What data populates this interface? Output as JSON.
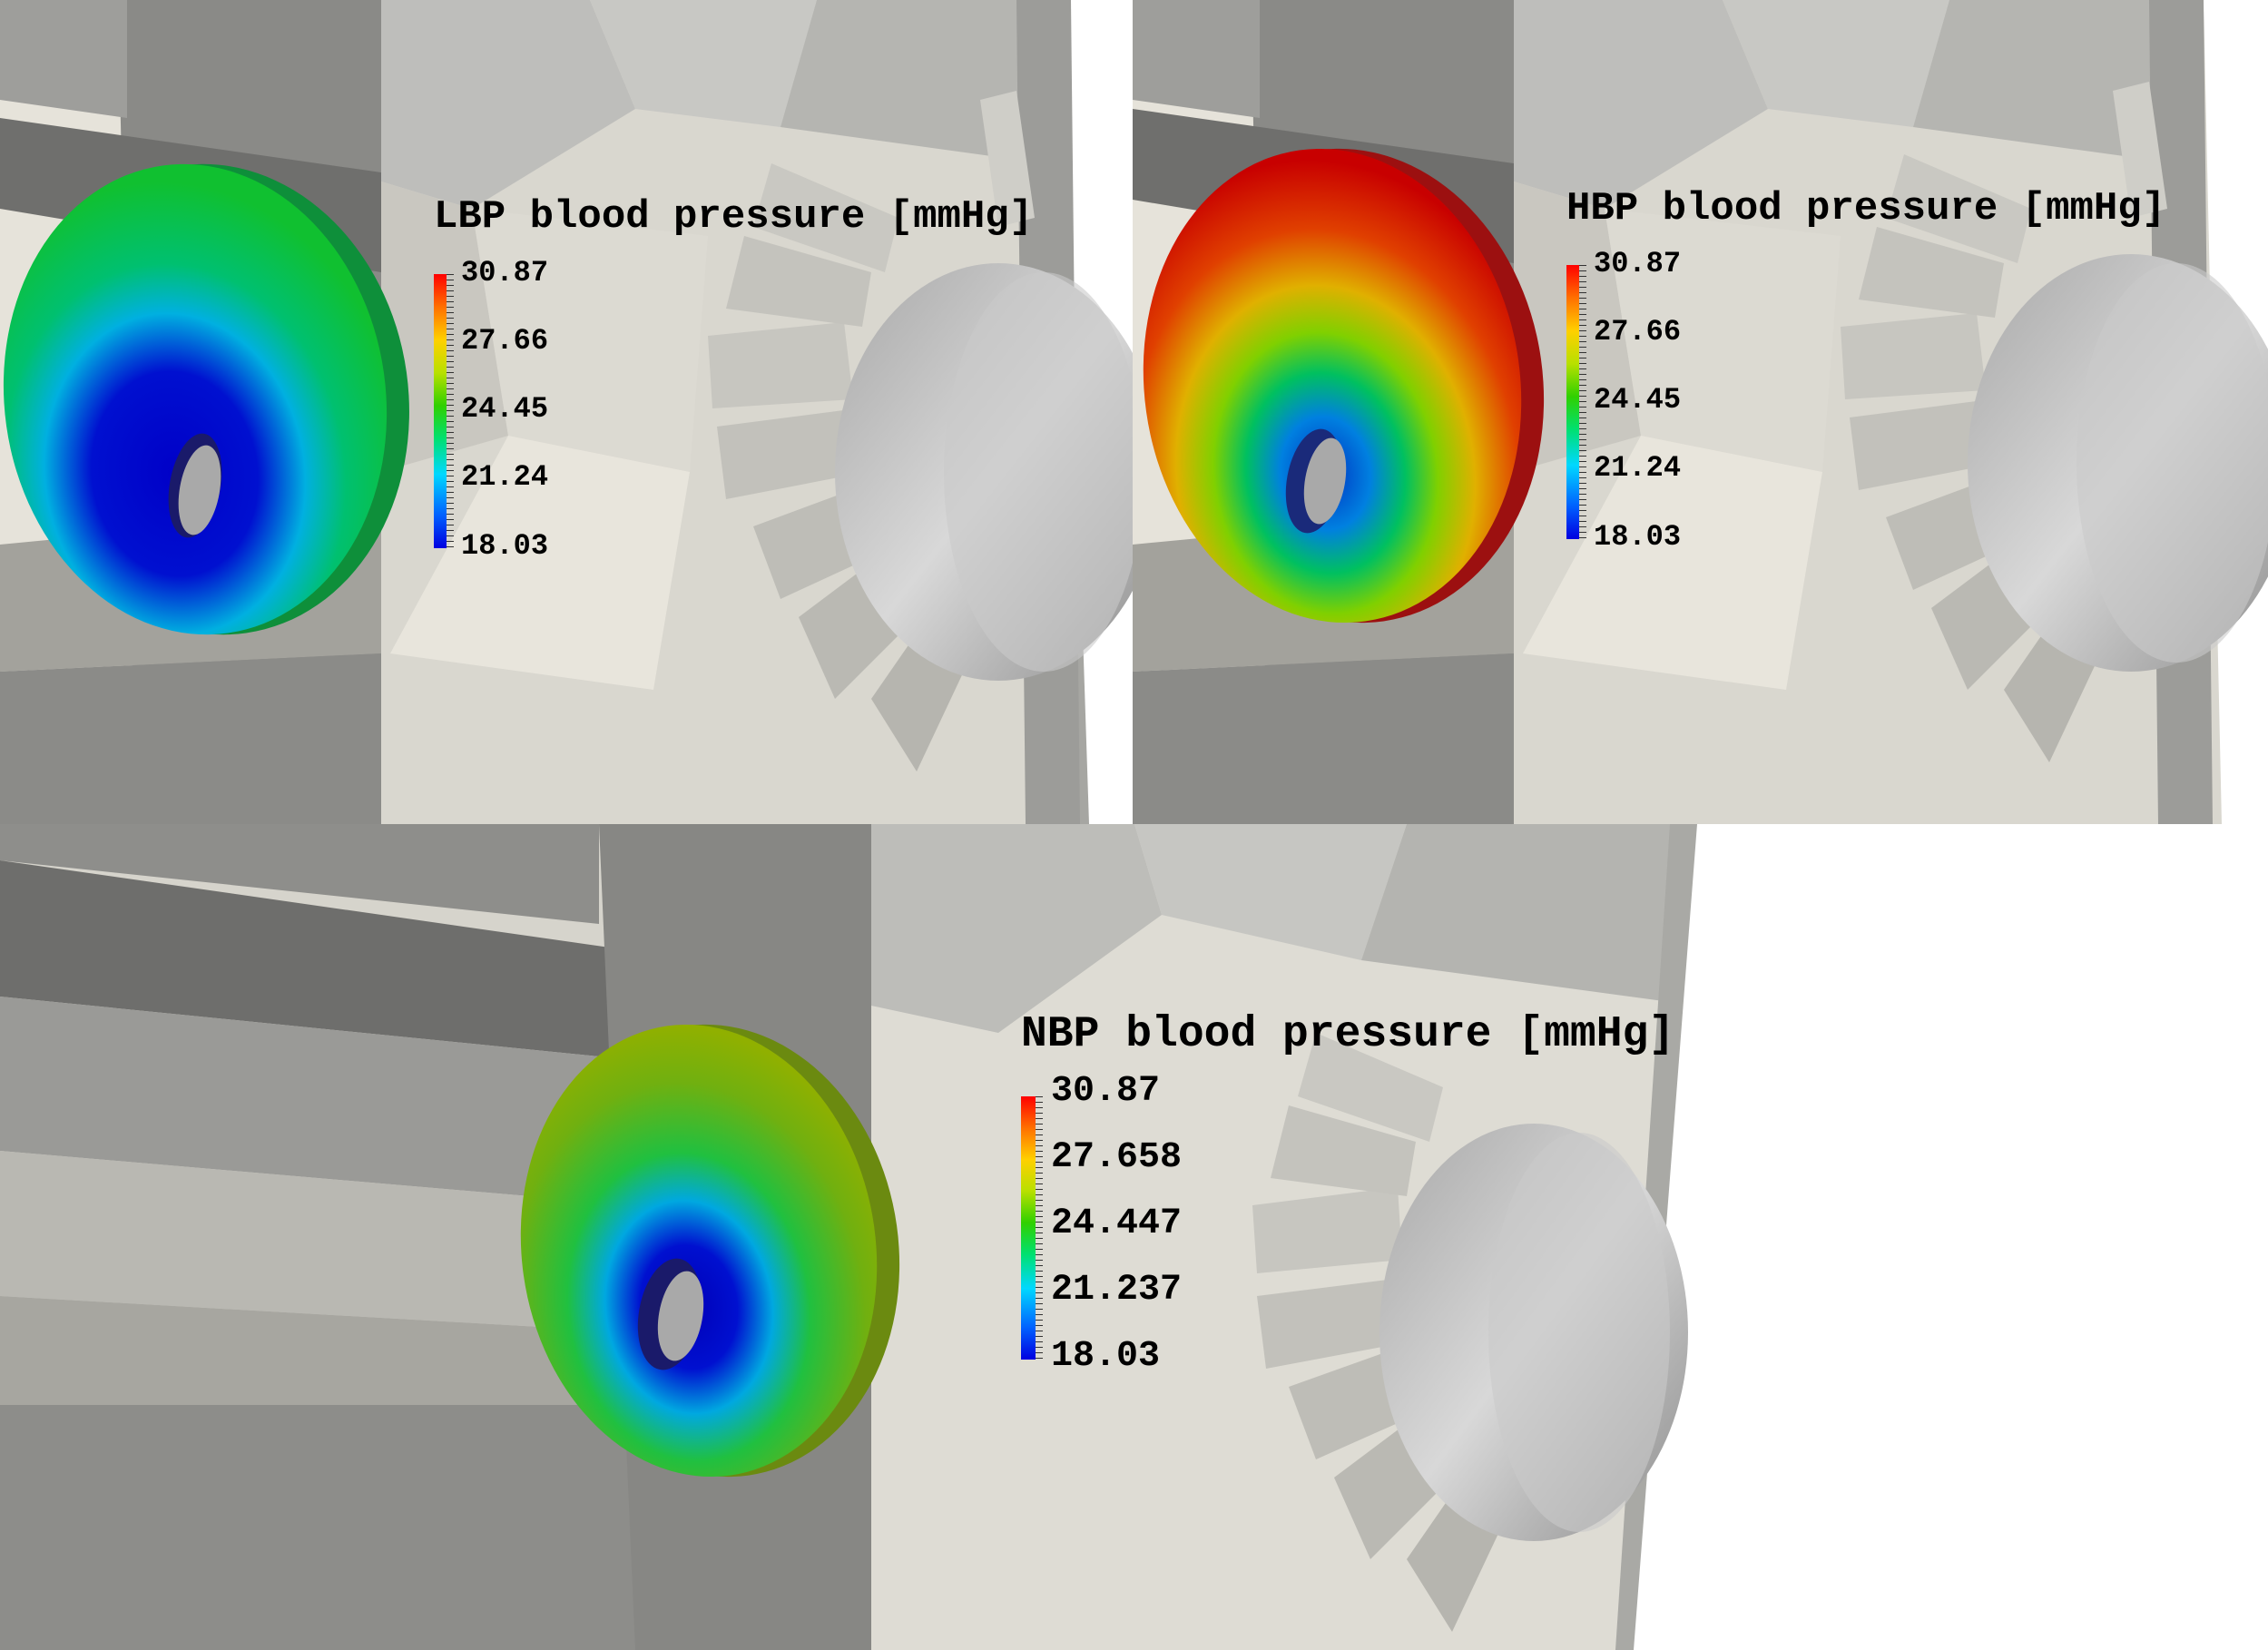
{
  "panels": [
    {
      "id": "lbp",
      "title": "LBP blood pressure [mmHg]",
      "colorbar_labels": [
        "30.87",
        "27.66",
        "24.45",
        "21.24",
        "18.03"
      ]
    },
    {
      "id": "hbp",
      "title": "HBP blood pressure [mmHg]",
      "colorbar_labels": [
        "30.87",
        "27.66",
        "24.45",
        "21.24",
        "18.03"
      ]
    },
    {
      "id": "nbp",
      "title": "NBP blood pressure [mmHg]",
      "colorbar_labels": [
        "30.87",
        "27.658",
        "24.447",
        "21.237",
        "18.03"
      ]
    }
  ],
  "colormap": {
    "name": "rainbow",
    "low_color": "#0000e0",
    "high_color": "#ff0000"
  },
  "pressure_range": {
    "min": 18.03,
    "max": 30.87
  }
}
